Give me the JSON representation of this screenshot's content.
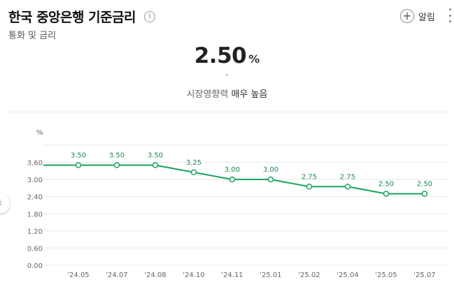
{
  "header": {
    "title": "한국 중앙은행 기준금리",
    "subtitle": "통화 및 금리",
    "info_icon": "info-icon",
    "alarm_label": "알림",
    "alarm_icon": "plus-icon",
    "more_icon": "more-vert-icon"
  },
  "summary": {
    "value": "2.50",
    "unit": "%",
    "change": "-",
    "impact_label": "시장영향력",
    "impact_level": "매우 높음"
  },
  "chart_data": {
    "type": "line",
    "unit_label": "%",
    "categories": [
      "'24.05",
      "'24.07",
      "'24.08",
      "'24.10",
      "'24.11",
      "'25.01",
      "'25.02",
      "'25.04",
      "'25.05",
      "'25.07"
    ],
    "values": [
      3.5,
      3.5,
      3.5,
      3.25,
      3.0,
      3.0,
      2.75,
      2.75,
      2.5,
      2.5
    ],
    "data_labels": [
      "3.50",
      "3.50",
      "3.50",
      "3.25",
      "3.00",
      "3.00",
      "2.75",
      "2.75",
      "2.50",
      "2.50"
    ],
    "y_ticks": [
      "0.00",
      "0.60",
      "1.20",
      "1.80",
      "2.40",
      "3.00",
      "3.60"
    ],
    "ylim": [
      0,
      4.2
    ],
    "grid": true,
    "line_color": "#1aa35c",
    "label_color": "#1a8a4e",
    "grid_color": "#e9e9e9",
    "axis_text_color": "#666666"
  }
}
